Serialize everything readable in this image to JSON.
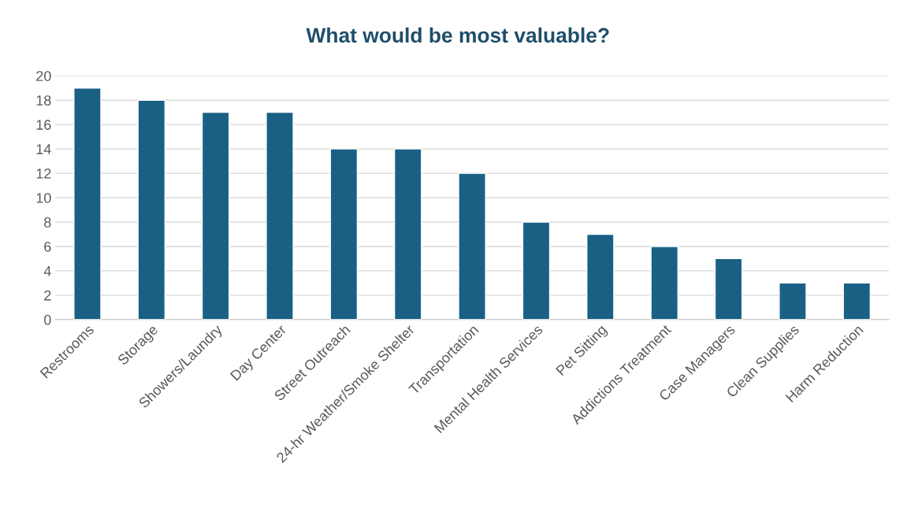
{
  "chart_data": {
    "type": "bar",
    "title": "What would be most valuable?",
    "categories": [
      "Restrooms",
      "Storage",
      "Showers/Laundry",
      "Day Center",
      "Street Outreach",
      "24-hr Weather/Smoke Shelter",
      "Transportation",
      "Mental Health Services",
      "Pet Sitting",
      "Addictions Treatment",
      "Case Managers",
      "Clean Supplies",
      "Harm Reduction"
    ],
    "values": [
      19,
      18,
      17,
      17,
      14,
      14,
      12,
      8,
      7,
      6,
      5,
      3,
      3
    ],
    "color": "#1a6085",
    "ylim": [
      0,
      20
    ],
    "yticks": [
      0,
      2,
      4,
      6,
      8,
      10,
      12,
      14,
      16,
      18,
      20
    ],
    "grid": "y"
  }
}
